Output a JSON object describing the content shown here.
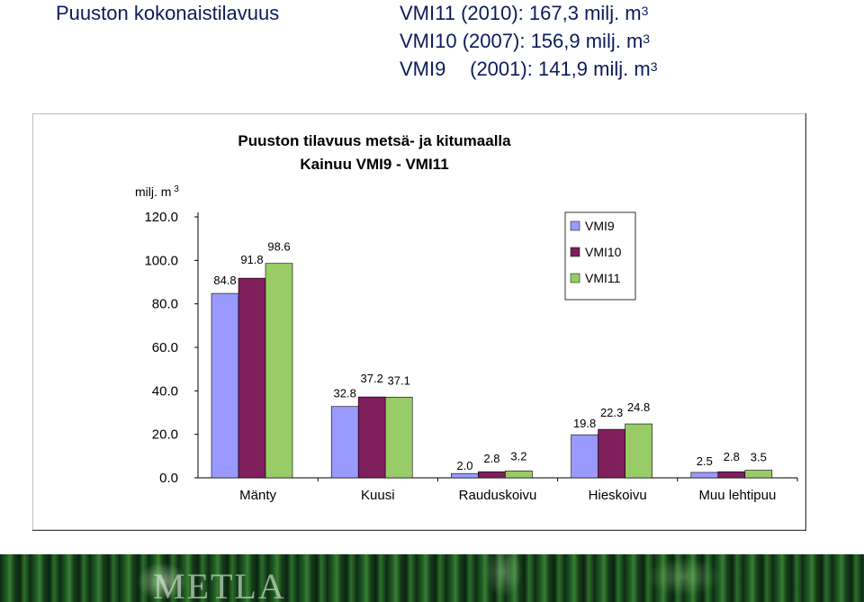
{
  "header": {
    "title": "Puuston kokonaistilavuus",
    "lines": [
      {
        "label": "VMI11",
        "period": "(2010):",
        "value": "167,3 milj. m",
        "sup": "3"
      },
      {
        "label": "VMI10",
        "period": "(2007):",
        "value": "156,9 milj. m",
        "sup": "3"
      },
      {
        "label": "VMI9",
        "period": "(2001):",
        "value": "141,9 milj. m",
        "sup": "3"
      }
    ]
  },
  "chart_data": {
    "type": "bar",
    "title": "Puuston tilavuus metsä- ja kitumaalla",
    "subtitle": "Kainuu VMI9 - VMI11",
    "ylabel": "milj. m",
    "ylabel_sup": "3",
    "ylim": [
      0,
      120
    ],
    "yticks": [
      "0.0",
      "20.0",
      "40.0",
      "60.0",
      "80.0",
      "100.0",
      "120.0"
    ],
    "categories": [
      "Mänty",
      "Kuusi",
      "Rauduskoivu",
      "Hieskoivu",
      "Muu lehtipuu"
    ],
    "series": [
      {
        "name": "VMI9",
        "color": "#9999ff",
        "values": [
          84.8,
          32.8,
          2.0,
          19.8,
          2.5
        ],
        "labels": [
          "84.8",
          "32.8",
          "2.0",
          "19.8",
          "2.5"
        ]
      },
      {
        "name": "VMI10",
        "color": "#7f1f5c",
        "values": [
          91.8,
          37.2,
          2.8,
          22.3,
          2.8
        ],
        "labels": [
          "91.8",
          "37.2",
          "2.8",
          "22.3",
          "2.8"
        ]
      },
      {
        "name": "VMI11",
        "color": "#99cc66",
        "values": [
          98.6,
          37.1,
          3.2,
          24.8,
          3.5
        ],
        "labels": [
          "98.6",
          "37.1",
          "3.2",
          "24.8",
          "3.5"
        ]
      }
    ],
    "legend_position": "top-right",
    "grid": false
  },
  "footer": {
    "logo_text": "METLA"
  }
}
